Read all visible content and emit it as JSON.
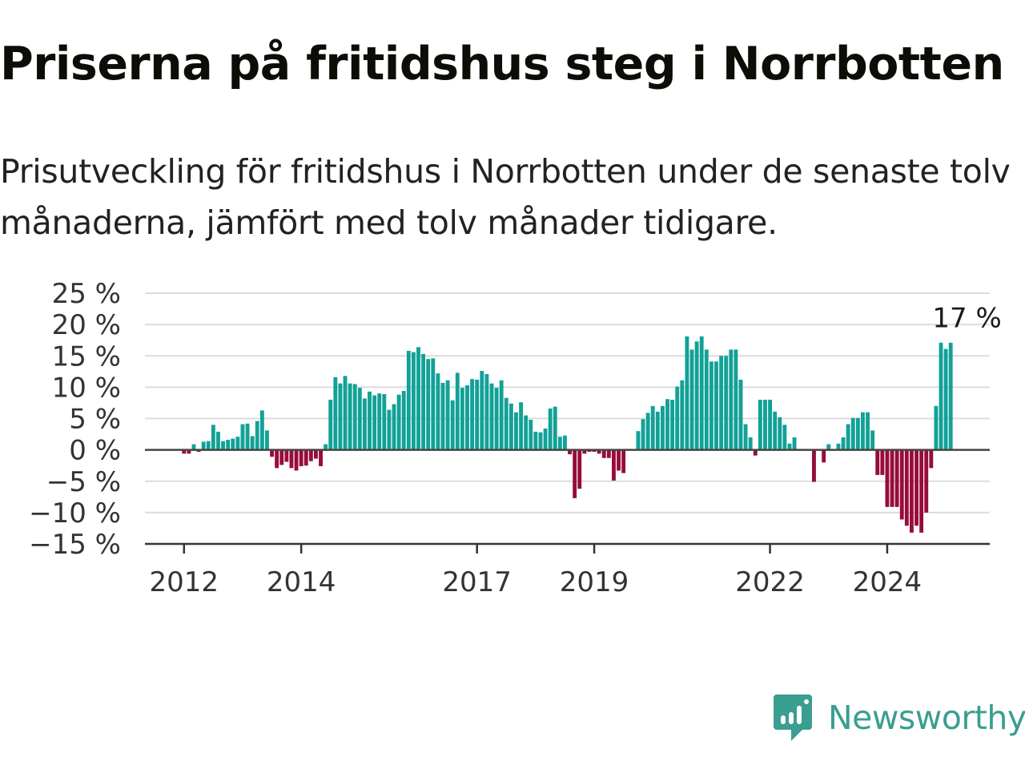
{
  "title": "Priserna på fritidshus steg i Norrbotten",
  "subtitle": "Prisutveckling för fritidshus i Norrbotten under de senaste tolv månaderna, jämfört med tolv månader tidigare.",
  "brand": {
    "name": "Newsworthy",
    "icon": "newsworthy-logo-icon",
    "color": "#3a9e91"
  },
  "chart_data": {
    "type": "bar",
    "title": "",
    "xlabel": "",
    "ylabel": "",
    "ylim": [
      -15,
      25
    ],
    "y_ticks": [
      25,
      20,
      15,
      10,
      5,
      0,
      -5,
      -10,
      -15
    ],
    "y_tick_labels": [
      "25 %",
      "20 %",
      "15 %",
      "10 %",
      "5 %",
      "0 %",
      "−5 %",
      "−10 %",
      "−15 %"
    ],
    "x_ticks": [
      {
        "date": "2012-01",
        "label": "2012"
      },
      {
        "date": "2014-01",
        "label": "2014"
      },
      {
        "date": "2017-01",
        "label": "2017"
      },
      {
        "date": "2019-01",
        "label": "2019"
      },
      {
        "date": "2022-01",
        "label": "2022"
      },
      {
        "date": "2024-01",
        "label": "2024"
      }
    ],
    "x_range": [
      "2011-05",
      "2025-10"
    ],
    "grid": true,
    "positive_color": "#12a197",
    "negative_color": "#970c3c",
    "annotation": {
      "label": "17 %",
      "value": 17,
      "date": "2025-06"
    },
    "start": "2012-01",
    "values": [
      -0.6,
      -0.6,
      0.9,
      -0.3,
      1.3,
      1.4,
      4.0,
      2.9,
      1.4,
      1.6,
      1.8,
      2.1,
      4.1,
      4.2,
      2.2,
      4.6,
      6.3,
      3.1,
      -1.1,
      -2.9,
      -2.4,
      -1.9,
      -2.9,
      -3.3,
      -2.6,
      -2.5,
      -1.8,
      -1.4,
      -2.6,
      0.9,
      8.0,
      11.6,
      10.6,
      11.8,
      10.6,
      10.5,
      9.9,
      8.2,
      9.3,
      8.7,
      9.0,
      8.9,
      6.4,
      7.3,
      8.8,
      9.4,
      15.8,
      15.6,
      16.4,
      15.3,
      14.5,
      14.6,
      12.2,
      10.7,
      11.1,
      7.9,
      12.3,
      9.9,
      10.3,
      11.3,
      11.2,
      12.6,
      12.1,
      10.6,
      9.9,
      11.1,
      8.3,
      7.4,
      6.0,
      7.6,
      5.5,
      4.8,
      2.9,
      2.8,
      3.4,
      6.6,
      6.9,
      2.1,
      2.3,
      -0.7,
      -7.7,
      -6.2,
      -0.6,
      -0.3,
      -0.3,
      -0.6,
      -1.3,
      -1.3,
      -4.9,
      -3.3,
      -3.7,
      0.0,
      0.0,
      3.0,
      4.9,
      5.9,
      7.0,
      6.1,
      7.0,
      8.1,
      8.0,
      10.1,
      11.1,
      18.1,
      16.0,
      17.3,
      18.1,
      16.0,
      14.1,
      14.1,
      15.0,
      15.0,
      16.0,
      16.0,
      11.2,
      4.1,
      2.0,
      -0.9,
      8.0,
      8.0,
      8.0,
      6.1,
      5.2,
      4.0,
      1.0,
      2.0,
      0.0,
      0.0,
      0.0,
      -5.1,
      0.0,
      -2.0,
      0.9,
      0.0,
      1.0,
      2.0,
      4.1,
      5.1,
      5.1,
      6.0,
      6.0,
      3.1,
      -4.0,
      -4.0,
      -9.1,
      -9.1,
      -9.1,
      -11.1,
      -12.1,
      -13.2,
      -12.1,
      -13.2,
      -10.0,
      -2.9,
      7.0,
      17.1,
      16.1,
      17.1
    ]
  }
}
